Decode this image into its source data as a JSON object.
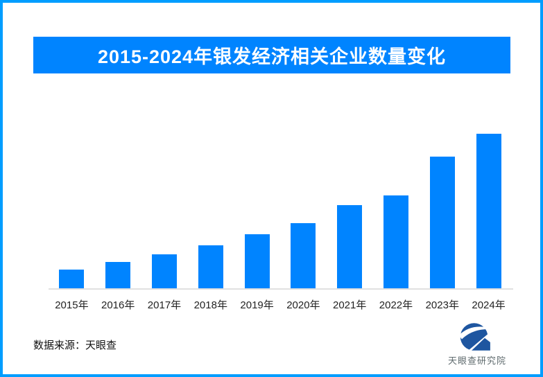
{
  "window": {
    "border_color": "#009DFF",
    "background": "#FFFFFF"
  },
  "header": {
    "title": "2015-2024年银发经济相关企业数量变化",
    "banner_color": "#0084FF",
    "title_color": "#FFFFFF"
  },
  "chart_data": {
    "type": "bar",
    "title": "2015-2024年银发经济相关企业数量变化",
    "categories": [
      "2015年",
      "2016年",
      "2017年",
      "2018年",
      "2019年",
      "2020年",
      "2021年",
      "2022年",
      "2023年",
      "2024年"
    ],
    "values": [
      12,
      17,
      22,
      28,
      35,
      42,
      54,
      60,
      85,
      100
    ],
    "value_scale": "relative index estimated from bar heights; no numeric axis or data labels shown; 2024 = 100",
    "bar_color": "#0084FF",
    "xlabel": "",
    "ylabel": "",
    "ylim": [
      0,
      100
    ],
    "grid": false,
    "legend": false,
    "value_axis_visible": false,
    "axis_line_color": "#E0E0E0",
    "x_tick_color": "#222222"
  },
  "footer": {
    "source_label": "数据来源：天眼查",
    "logo_text": "天眼查研究院",
    "logo_color": "#1E56A0",
    "logo_text_color": "#5F6B6E"
  }
}
